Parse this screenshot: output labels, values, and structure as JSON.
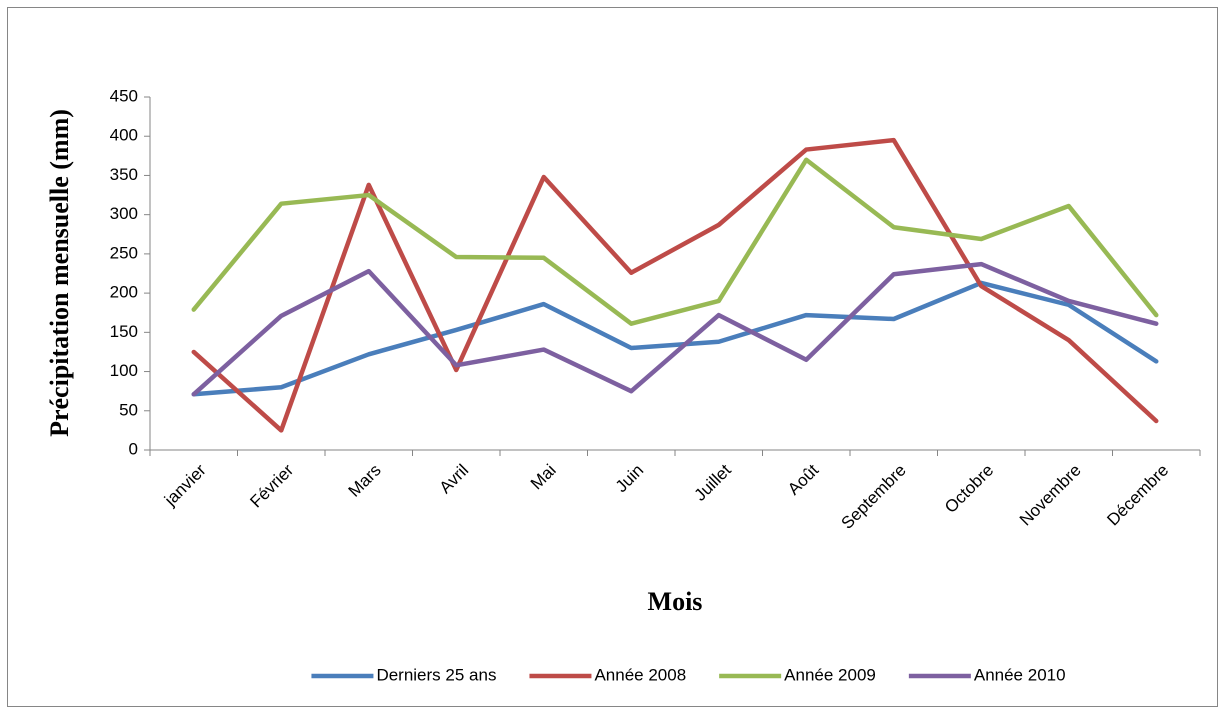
{
  "chart_data": {
    "type": "line",
    "y_label": "Précipitation mensuelle (mm)",
    "x_label": "Mois",
    "categories": [
      "janvier",
      "Février",
      "Mars",
      "Avril",
      "Mai",
      "Juin",
      "Juillet",
      "Août",
      "Septembre",
      "Octobre",
      "Novembre",
      "Décembre"
    ],
    "series": [
      {
        "name": "Derniers 25 ans",
        "color": "#4a7ebb",
        "values": [
          71,
          80,
          122,
          153,
          186,
          130,
          138,
          172,
          167,
          213,
          185,
          113
        ]
      },
      {
        "name": "Année 2008",
        "color": "#be4b48",
        "values": [
          125,
          25,
          338,
          102,
          348,
          226,
          287,
          383,
          395,
          209,
          140,
          37
        ]
      },
      {
        "name": "Année 2009",
        "color": "#98b954",
        "values": [
          179,
          314,
          325,
          246,
          245,
          161,
          190,
          370,
          284,
          269,
          311,
          172
        ]
      },
      {
        "name": "Année 2010",
        "color": "#7d60a0",
        "values": [
          71,
          171,
          228,
          108,
          128,
          75,
          172,
          115,
          224,
          237,
          190,
          161
        ]
      }
    ],
    "ylim": [
      0,
      450
    ],
    "yticks": [
      0,
      50,
      100,
      150,
      200,
      250,
      300,
      350,
      400,
      450
    ],
    "grid": false,
    "legend": "bottom"
  }
}
